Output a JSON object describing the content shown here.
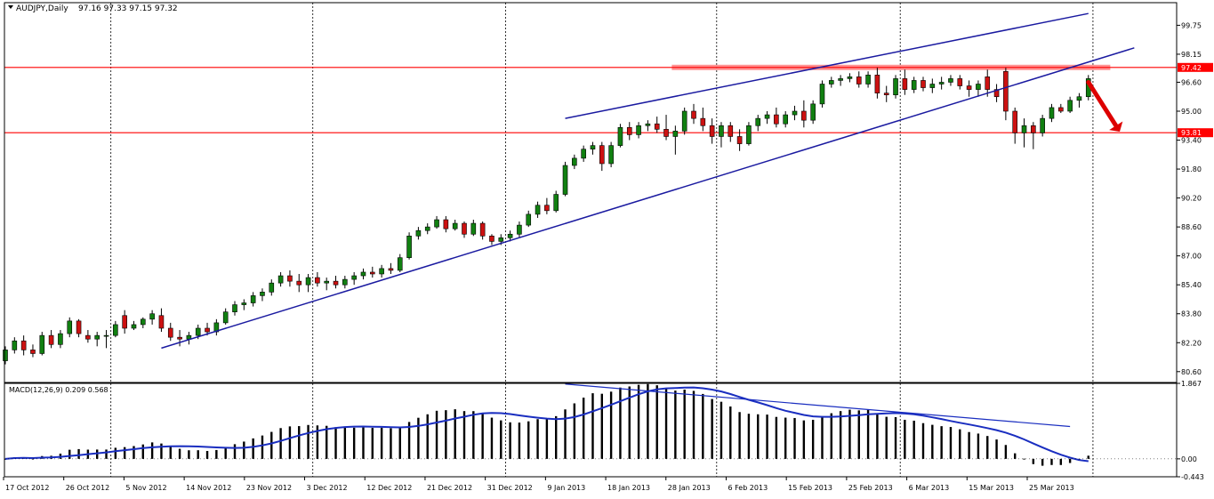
{
  "chart_data": {
    "type": "candlestick",
    "header": {
      "symbol_text": "AUDJPY,Daily",
      "ohlc_text": "97.16 97.33 97.15 97.32"
    },
    "price_panel": {
      "ylim": [
        80.0,
        101.0
      ],
      "y_ticks": [
        "99.75",
        "98.15",
        "96.60",
        "95.00",
        "93.40",
        "91.80",
        "90.20",
        "88.60",
        "87.00",
        "85.40",
        "83.80",
        "82.20",
        "80.60"
      ],
      "horizontal_levels": [
        {
          "label": "97.42",
          "value": 97.42,
          "color": "#ff0000"
        },
        {
          "label": "93.81",
          "value": 93.81,
          "color": "#ff0000"
        }
      ],
      "resistance_zone": {
        "from_date": "Jan 25 2013",
        "to_date": "Apr 02 2013",
        "value": 97.42,
        "color": "#ff8080"
      },
      "trendlines": [
        {
          "name": "lower-channel",
          "from": [
            "Nov 08 2012",
            81.9
          ],
          "to": [
            "Apr 05 2013",
            98.5
          ]
        },
        {
          "name": "upper-channel",
          "from": [
            "Jan 09 2013",
            94.6
          ],
          "to": [
            "Mar 29 2013",
            100.4
          ]
        }
      ],
      "arrow": {
        "from": [
          "Mar 29 2013",
          96.6
        ],
        "to": [
          "Apr 03 2013",
          94.2
        ],
        "color": "#dd0000"
      },
      "colors": {
        "up": "#118011",
        "down": "#cc1111",
        "line": "#1a1aa0"
      }
    },
    "macd_panel": {
      "label_text": "MACD(12,26,9) 0.209 0.568",
      "ylim": [
        -0.443,
        1.867
      ],
      "y_ticks": [
        "1.867",
        "0.00",
        "-0.443"
      ],
      "trendline": {
        "from": [
          "Jan 09 2013",
          1.85
        ],
        "to": [
          "Mar 27 2013",
          0.8
        ]
      },
      "colors": {
        "histogram": "#000000",
        "signal": "#1a2ec0"
      }
    },
    "x_ticks": [
      "17 Oct 2012",
      "26 Oct 2012",
      "5 Nov 2012",
      "14 Nov 2012",
      "23 Nov 2012",
      "3 Dec 2012",
      "12 Dec 2012",
      "21 Dec 2012",
      "31 Dec 2012",
      "9 Jan 2013",
      "18 Jan 2013",
      "28 Jan 2013",
      "6 Feb 2013",
      "15 Feb 2013",
      "25 Feb 2013",
      "6 Mar 2013",
      "15 Mar 2013",
      "25 Mar 2013"
    ],
    "period_separators": [
      "Nov 2012",
      "Dec 2012",
      "Jan 2013",
      "Feb 2013",
      "Mar 2013",
      "Apr 2013"
    ],
    "candles": [
      {
        "d": "Oct 16 2012",
        "o": 81.2,
        "h": 82.0,
        "l": 81.0,
        "c": 81.8
      },
      {
        "d": "Oct 17 2012",
        "o": 81.8,
        "h": 82.5,
        "l": 81.6,
        "c": 82.3
      },
      {
        "d": "Oct 18 2012",
        "o": 82.3,
        "h": 82.6,
        "l": 81.5,
        "c": 81.8
      },
      {
        "d": "Oct 19 2012",
        "o": 81.8,
        "h": 82.1,
        "l": 81.4,
        "c": 81.6
      },
      {
        "d": "Oct 22 2012",
        "o": 81.6,
        "h": 82.8,
        "l": 81.5,
        "c": 82.6
      },
      {
        "d": "Oct 23 2012",
        "o": 82.6,
        "h": 82.9,
        "l": 81.9,
        "c": 82.1
      },
      {
        "d": "Oct 24 2012",
        "o": 82.1,
        "h": 82.9,
        "l": 81.9,
        "c": 82.7
      },
      {
        "d": "Oct 25 2012",
        "o": 82.7,
        "h": 83.6,
        "l": 82.5,
        "c": 83.4
      },
      {
        "d": "Oct 26 2012",
        "o": 83.4,
        "h": 83.5,
        "l": 82.5,
        "c": 82.7
      },
      {
        "d": "Oct 29 2012",
        "o": 82.6,
        "h": 82.9,
        "l": 82.2,
        "c": 82.4
      },
      {
        "d": "Oct 30 2012",
        "o": 82.4,
        "h": 82.8,
        "l": 82.0,
        "c": 82.6
      },
      {
        "d": "Oct 31 2012",
        "o": 82.6,
        "h": 82.9,
        "l": 81.9,
        "c": 82.6
      },
      {
        "d": "Nov 01 2012",
        "o": 82.6,
        "h": 83.4,
        "l": 82.5,
        "c": 83.2
      },
      {
        "d": "Nov 02 2012",
        "o": 83.7,
        "h": 84.0,
        "l": 82.7,
        "c": 83.0
      },
      {
        "d": "Nov 05 2012",
        "o": 83.0,
        "h": 83.4,
        "l": 82.9,
        "c": 83.2
      },
      {
        "d": "Nov 06 2012",
        "o": 83.2,
        "h": 83.6,
        "l": 83.0,
        "c": 83.5
      },
      {
        "d": "Nov 07 2012",
        "o": 83.5,
        "h": 84.0,
        "l": 83.2,
        "c": 83.8
      },
      {
        "d": "Nov 08 2012",
        "o": 83.7,
        "h": 84.1,
        "l": 82.8,
        "c": 83.0
      },
      {
        "d": "Nov 09 2012",
        "o": 83.0,
        "h": 83.3,
        "l": 82.3,
        "c": 82.5
      },
      {
        "d": "Nov 12 2012",
        "o": 82.5,
        "h": 82.9,
        "l": 82.0,
        "c": 82.4
      },
      {
        "d": "Nov 13 2012",
        "o": 82.4,
        "h": 82.8,
        "l": 82.1,
        "c": 82.6
      },
      {
        "d": "Nov 14 2012",
        "o": 82.6,
        "h": 83.2,
        "l": 82.4,
        "c": 83.0
      },
      {
        "d": "Nov 15 2012",
        "o": 83.0,
        "h": 83.3,
        "l": 82.6,
        "c": 82.8
      },
      {
        "d": "Nov 16 2012",
        "o": 82.8,
        "h": 83.5,
        "l": 82.6,
        "c": 83.3
      },
      {
        "d": "Nov 19 2012",
        "o": 83.3,
        "h": 84.1,
        "l": 83.2,
        "c": 83.9
      },
      {
        "d": "Nov 20 2012",
        "o": 83.9,
        "h": 84.5,
        "l": 83.7,
        "c": 84.3
      },
      {
        "d": "Nov 21 2012",
        "o": 84.3,
        "h": 84.6,
        "l": 84.0,
        "c": 84.4
      },
      {
        "d": "Nov 22 2012",
        "o": 84.4,
        "h": 85.0,
        "l": 84.2,
        "c": 84.8
      },
      {
        "d": "Nov 23 2012",
        "o": 84.8,
        "h": 85.2,
        "l": 84.5,
        "c": 85.0
      },
      {
        "d": "Nov 26 2012",
        "o": 85.0,
        "h": 85.7,
        "l": 84.8,
        "c": 85.5
      },
      {
        "d": "Nov 27 2012",
        "o": 85.5,
        "h": 86.1,
        "l": 85.3,
        "c": 85.9
      },
      {
        "d": "Nov 28 2012",
        "o": 85.9,
        "h": 86.2,
        "l": 85.3,
        "c": 85.6
      },
      {
        "d": "Nov 29 2012",
        "o": 85.6,
        "h": 86.0,
        "l": 85.0,
        "c": 85.4
      },
      {
        "d": "Nov 30 2012",
        "o": 85.4,
        "h": 86.0,
        "l": 85.0,
        "c": 85.8
      },
      {
        "d": "Dec 03 2012",
        "o": 85.8,
        "h": 86.1,
        "l": 85.3,
        "c": 85.5
      },
      {
        "d": "Dec 04 2012",
        "o": 85.5,
        "h": 85.8,
        "l": 85.1,
        "c": 85.6
      },
      {
        "d": "Dec 05 2012",
        "o": 85.6,
        "h": 85.9,
        "l": 85.2,
        "c": 85.4
      },
      {
        "d": "Dec 06 2012",
        "o": 85.4,
        "h": 85.9,
        "l": 85.2,
        "c": 85.7
      },
      {
        "d": "Dec 07 2012",
        "o": 85.7,
        "h": 86.1,
        "l": 85.4,
        "c": 85.9
      },
      {
        "d": "Dec 10 2012",
        "o": 85.9,
        "h": 86.3,
        "l": 85.7,
        "c": 86.1
      },
      {
        "d": "Dec 11 2012",
        "o": 86.1,
        "h": 86.4,
        "l": 85.8,
        "c": 86.0
      },
      {
        "d": "Dec 12 2012",
        "o": 86.0,
        "h": 86.5,
        "l": 85.8,
        "c": 86.3
      },
      {
        "d": "Dec 13 2012",
        "o": 86.3,
        "h": 86.6,
        "l": 86.0,
        "c": 86.2
      },
      {
        "d": "Dec 14 2012",
        "o": 86.2,
        "h": 87.1,
        "l": 86.1,
        "c": 86.9
      },
      {
        "d": "Dec 17 2012",
        "o": 86.9,
        "h": 88.3,
        "l": 86.8,
        "c": 88.1
      },
      {
        "d": "Dec 18 2012",
        "o": 88.1,
        "h": 88.6,
        "l": 87.9,
        "c": 88.4
      },
      {
        "d": "Dec 19 2012",
        "o": 88.4,
        "h": 88.8,
        "l": 88.2,
        "c": 88.6
      },
      {
        "d": "Dec 20 2012",
        "o": 88.6,
        "h": 89.2,
        "l": 88.5,
        "c": 89.0
      },
      {
        "d": "Dec 21 2012",
        "o": 89.0,
        "h": 89.2,
        "l": 88.3,
        "c": 88.5
      },
      {
        "d": "Dec 24 2012",
        "o": 88.5,
        "h": 89.0,
        "l": 88.4,
        "c": 88.8
      },
      {
        "d": "Dec 25 2012",
        "o": 88.8,
        "h": 88.9,
        "l": 88.0,
        "c": 88.2
      },
      {
        "d": "Dec 26 2012",
        "o": 88.2,
        "h": 89.0,
        "l": 88.1,
        "c": 88.8
      },
      {
        "d": "Dec 27 2012",
        "o": 88.8,
        "h": 88.9,
        "l": 87.9,
        "c": 88.1
      },
      {
        "d": "Dec 28 2012",
        "o": 88.1,
        "h": 88.2,
        "l": 87.6,
        "c": 87.8
      },
      {
        "d": "Dec 31 2012",
        "o": 87.8,
        "h": 88.2,
        "l": 87.6,
        "c": 88.0
      },
      {
        "d": "Jan 01 2013",
        "o": 88.0,
        "h": 88.4,
        "l": 87.8,
        "c": 88.2
      },
      {
        "d": "Jan 02 2013",
        "o": 88.2,
        "h": 88.9,
        "l": 88.0,
        "c": 88.7
      },
      {
        "d": "Jan 03 2013",
        "o": 88.7,
        "h": 89.5,
        "l": 88.6,
        "c": 89.3
      },
      {
        "d": "Jan 04 2013",
        "o": 89.3,
        "h": 90.0,
        "l": 89.1,
        "c": 89.8
      },
      {
        "d": "Jan 07 2013",
        "o": 89.8,
        "h": 90.2,
        "l": 89.3,
        "c": 89.5
      },
      {
        "d": "Jan 08 2013",
        "o": 89.5,
        "h": 90.6,
        "l": 89.4,
        "c": 90.4
      },
      {
        "d": "Jan 09 2013",
        "o": 90.4,
        "h": 92.2,
        "l": 90.3,
        "c": 92.0
      },
      {
        "d": "Jan 10 2013",
        "o": 92.0,
        "h": 92.6,
        "l": 91.8,
        "c": 92.4
      },
      {
        "d": "Jan 11 2013",
        "o": 92.4,
        "h": 93.1,
        "l": 92.2,
        "c": 92.9
      },
      {
        "d": "Jan 14 2013",
        "o": 92.9,
        "h": 93.3,
        "l": 92.6,
        "c": 93.1
      },
      {
        "d": "Jan 15 2013",
        "o": 93.1,
        "h": 93.3,
        "l": 91.7,
        "c": 92.1
      },
      {
        "d": "Jan 16 2013",
        "o": 92.1,
        "h": 93.3,
        "l": 91.9,
        "c": 93.1
      },
      {
        "d": "Jan 17 2013",
        "o": 93.1,
        "h": 94.3,
        "l": 93.0,
        "c": 94.1
      },
      {
        "d": "Jan 18 2013",
        "o": 94.1,
        "h": 94.4,
        "l": 93.4,
        "c": 93.7
      },
      {
        "d": "Jan 21 2013",
        "o": 93.7,
        "h": 94.4,
        "l": 93.5,
        "c": 94.2
      },
      {
        "d": "Jan 22 2013",
        "o": 94.2,
        "h": 94.5,
        "l": 93.9,
        "c": 94.3
      },
      {
        "d": "Jan 23 2013",
        "o": 94.3,
        "h": 94.7,
        "l": 93.8,
        "c": 94.0
      },
      {
        "d": "Jan 24 2013",
        "o": 94.0,
        "h": 94.8,
        "l": 93.4,
        "c": 93.6
      },
      {
        "d": "Jan 25 2013",
        "o": 93.6,
        "h": 94.2,
        "l": 92.6,
        "c": 93.9
      },
      {
        "d": "Jan 28 2013",
        "o": 93.9,
        "h": 95.2,
        "l": 93.7,
        "c": 95.0
      },
      {
        "d": "Jan 29 2013",
        "o": 95.0,
        "h": 95.4,
        "l": 94.3,
        "c": 94.6
      },
      {
        "d": "Jan 30 2013",
        "o": 94.6,
        "h": 95.2,
        "l": 93.9,
        "c": 94.2
      },
      {
        "d": "Jan 31 2013",
        "o": 94.2,
        "h": 94.6,
        "l": 93.2,
        "c": 93.6
      },
      {
        "d": "Feb 01 2013",
        "o": 93.6,
        "h": 94.4,
        "l": 93.0,
        "c": 94.2
      },
      {
        "d": "Feb 04 2013",
        "o": 94.2,
        "h": 94.4,
        "l": 93.3,
        "c": 93.6
      },
      {
        "d": "Feb 05 2013",
        "o": 93.6,
        "h": 94.0,
        "l": 92.8,
        "c": 93.2
      },
      {
        "d": "Feb 06 2013",
        "o": 93.2,
        "h": 94.4,
        "l": 93.1,
        "c": 94.2
      },
      {
        "d": "Feb 07 2013",
        "o": 94.2,
        "h": 94.8,
        "l": 93.9,
        "c": 94.6
      },
      {
        "d": "Feb 08 2013",
        "o": 94.6,
        "h": 95.0,
        "l": 94.3,
        "c": 94.8
      },
      {
        "d": "Feb 11 2013",
        "o": 94.8,
        "h": 95.2,
        "l": 94.1,
        "c": 94.3
      },
      {
        "d": "Feb 12 2013",
        "o": 94.3,
        "h": 95.0,
        "l": 94.1,
        "c": 94.8
      },
      {
        "d": "Feb 13 2013",
        "o": 94.8,
        "h": 95.3,
        "l": 94.5,
        "c": 95.0
      },
      {
        "d": "Feb 14 2013",
        "o": 95.0,
        "h": 95.6,
        "l": 94.1,
        "c": 94.5
      },
      {
        "d": "Feb 15 2013",
        "o": 94.5,
        "h": 95.6,
        "l": 94.3,
        "c": 95.4
      },
      {
        "d": "Feb 18 2013",
        "o": 95.4,
        "h": 96.7,
        "l": 95.2,
        "c": 96.5
      },
      {
        "d": "Feb 19 2013",
        "o": 96.5,
        "h": 96.9,
        "l": 96.3,
        "c": 96.7
      },
      {
        "d": "Feb 20 2013",
        "o": 96.7,
        "h": 97.0,
        "l": 96.4,
        "c": 96.8
      },
      {
        "d": "Feb 21 2013",
        "o": 96.8,
        "h": 97.1,
        "l": 96.6,
        "c": 96.9
      },
      {
        "d": "Feb 22 2013",
        "o": 96.9,
        "h": 97.2,
        "l": 96.3,
        "c": 96.5
      },
      {
        "d": "Feb 25 2013",
        "o": 96.5,
        "h": 97.2,
        "l": 96.3,
        "c": 97.0
      },
      {
        "d": "Feb 26 2013",
        "o": 97.0,
        "h": 97.4,
        "l": 95.7,
        "c": 96.0
      },
      {
        "d": "Feb 27 2013",
        "o": 96.0,
        "h": 96.4,
        "l": 95.5,
        "c": 95.9
      },
      {
        "d": "Feb 28 2013",
        "o": 95.9,
        "h": 97.0,
        "l": 95.7,
        "c": 96.8
      },
      {
        "d": "Mar 01 2013",
        "o": 96.8,
        "h": 97.3,
        "l": 95.9,
        "c": 96.2
      },
      {
        "d": "Mar 04 2013",
        "o": 96.2,
        "h": 96.9,
        "l": 96.0,
        "c": 96.7
      },
      {
        "d": "Mar 05 2013",
        "o": 96.7,
        "h": 96.9,
        "l": 96.1,
        "c": 96.3
      },
      {
        "d": "Mar 06 2013",
        "o": 96.3,
        "h": 96.8,
        "l": 96.0,
        "c": 96.5
      },
      {
        "d": "Mar 07 2013",
        "o": 96.5,
        "h": 96.9,
        "l": 96.2,
        "c": 96.6
      },
      {
        "d": "Mar 08 2013",
        "o": 96.6,
        "h": 97.0,
        "l": 96.4,
        "c": 96.8
      },
      {
        "d": "Mar 11 2013",
        "o": 96.8,
        "h": 97.0,
        "l": 96.2,
        "c": 96.4
      },
      {
        "d": "Mar 12 2013",
        "o": 96.4,
        "h": 96.7,
        "l": 95.8,
        "c": 96.2
      },
      {
        "d": "Mar 13 2013",
        "o": 96.2,
        "h": 96.7,
        "l": 95.8,
        "c": 96.5
      },
      {
        "d": "Mar 14 2013",
        "o": 96.9,
        "h": 97.3,
        "l": 95.8,
        "c": 96.2
      },
      {
        "d": "Mar 15 2013",
        "o": 96.2,
        "h": 96.5,
        "l": 95.5,
        "c": 95.8
      },
      {
        "d": "Mar 18 2013",
        "o": 97.2,
        "h": 97.4,
        "l": 94.5,
        "c": 95.0
      },
      {
        "d": "Mar 19 2013",
        "o": 95.0,
        "h": 95.2,
        "l": 93.2,
        "c": 93.8
      },
      {
        "d": "Mar 20 2013",
        "o": 93.8,
        "h": 94.6,
        "l": 93.0,
        "c": 94.2
      },
      {
        "d": "Mar 21 2013",
        "o": 94.2,
        "h": 94.4,
        "l": 92.9,
        "c": 93.8
      },
      {
        "d": "Mar 22 2013",
        "o": 93.8,
        "h": 94.8,
        "l": 93.6,
        "c": 94.6
      },
      {
        "d": "Mar 25 2013",
        "o": 94.6,
        "h": 95.4,
        "l": 94.4,
        "c": 95.2
      },
      {
        "d": "Mar 26 2013",
        "o": 95.2,
        "h": 95.4,
        "l": 94.9,
        "c": 95.0
      },
      {
        "d": "Mar 27 2013",
        "o": 95.0,
        "h": 95.8,
        "l": 94.9,
        "c": 95.6
      },
      {
        "d": "Mar 28 2013",
        "o": 95.6,
        "h": 96.0,
        "l": 95.2,
        "c": 95.8
      },
      {
        "d": "Mar 29 2013",
        "o": 95.8,
        "h": 97.0,
        "l": 95.6,
        "c": 96.8
      }
    ],
    "macd_hist": [],
    "macd_signal": []
  }
}
